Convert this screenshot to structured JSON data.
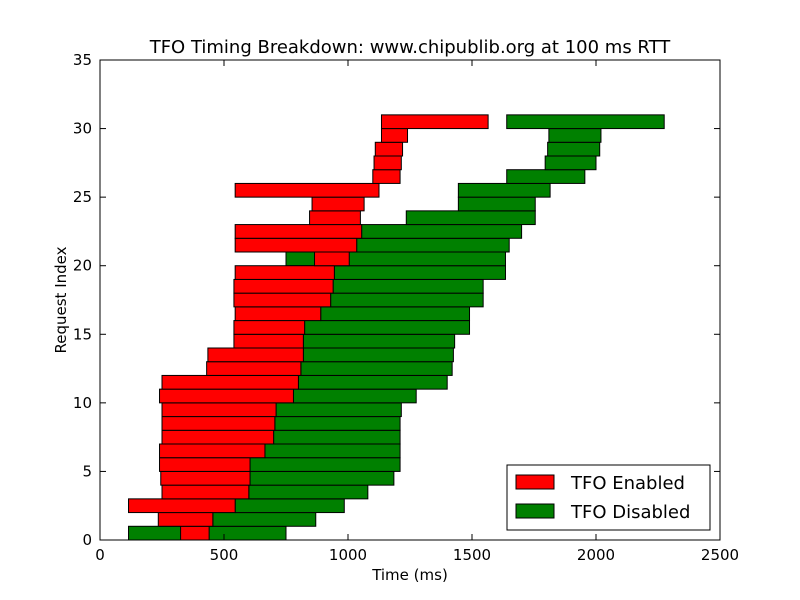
{
  "chart_data": {
    "type": "bar",
    "orientation": "horizontal",
    "title": "TFO Timing Breakdown: www.chipublib.org at 100 ms RTT",
    "xlabel": "Time (ms)",
    "ylabel": "Request Index",
    "xlim": [
      0,
      2500
    ],
    "ylim": [
      0,
      35
    ],
    "xticks": [
      0,
      500,
      1000,
      1500,
      2000,
      2500
    ],
    "yticks": [
      0,
      5,
      10,
      15,
      20,
      25,
      30,
      35
    ],
    "grid": false,
    "legend_position": "lower-right",
    "series": [
      {
        "name": "TFO Enabled",
        "color": "#ff0000",
        "bars": [
          {
            "index": 0,
            "start": 325,
            "end": 440
          },
          {
            "index": 1,
            "start": 235,
            "end": 455
          },
          {
            "index": 2,
            "start": 115,
            "end": 545
          },
          {
            "index": 3,
            "start": 250,
            "end": 600
          },
          {
            "index": 4,
            "start": 245,
            "end": 605
          },
          {
            "index": 5,
            "start": 240,
            "end": 605
          },
          {
            "index": 6,
            "start": 240,
            "end": 665
          },
          {
            "index": 7,
            "start": 250,
            "end": 700
          },
          {
            "index": 8,
            "start": 250,
            "end": 705
          },
          {
            "index": 9,
            "start": 250,
            "end": 710
          },
          {
            "index": 10,
            "start": 240,
            "end": 780
          },
          {
            "index": 11,
            "start": 250,
            "end": 800
          },
          {
            "index": 12,
            "start": 430,
            "end": 810
          },
          {
            "index": 13,
            "start": 435,
            "end": 820
          },
          {
            "index": 14,
            "start": 540,
            "end": 820
          },
          {
            "index": 15,
            "start": 540,
            "end": 825
          },
          {
            "index": 16,
            "start": 545,
            "end": 890
          },
          {
            "index": 17,
            "start": 540,
            "end": 930
          },
          {
            "index": 18,
            "start": 540,
            "end": 940
          },
          {
            "index": 19,
            "start": 545,
            "end": 945
          },
          {
            "index": 20,
            "start": 865,
            "end": 1005
          },
          {
            "index": 21,
            "start": 545,
            "end": 1035
          },
          {
            "index": 22,
            "start": 545,
            "end": 1055
          },
          {
            "index": 23,
            "start": 845,
            "end": 1050
          },
          {
            "index": 24,
            "start": 855,
            "end": 1065
          },
          {
            "index": 25,
            "start": 545,
            "end": 1125
          },
          {
            "index": 26,
            "start": 1100,
            "end": 1210
          },
          {
            "index": 27,
            "start": 1105,
            "end": 1215
          },
          {
            "index": 28,
            "start": 1110,
            "end": 1220
          },
          {
            "index": 29,
            "start": 1135,
            "end": 1240
          },
          {
            "index": 30,
            "start": 1135,
            "end": 1565
          }
        ]
      },
      {
        "name": "TFO Disabled",
        "color": "#008000",
        "bars": [
          {
            "index": 0,
            "start": 115,
            "end": 750
          },
          {
            "index": 1,
            "start": 455,
            "end": 870
          },
          {
            "index": 2,
            "start": 545,
            "end": 985
          },
          {
            "index": 3,
            "start": 600,
            "end": 1080
          },
          {
            "index": 4,
            "start": 605,
            "end": 1185
          },
          {
            "index": 5,
            "start": 605,
            "end": 1210
          },
          {
            "index": 6,
            "start": 665,
            "end": 1210
          },
          {
            "index": 7,
            "start": 700,
            "end": 1210
          },
          {
            "index": 8,
            "start": 705,
            "end": 1210
          },
          {
            "index": 9,
            "start": 710,
            "end": 1215
          },
          {
            "index": 10,
            "start": 780,
            "end": 1275
          },
          {
            "index": 11,
            "start": 800,
            "end": 1400
          },
          {
            "index": 12,
            "start": 810,
            "end": 1420
          },
          {
            "index": 13,
            "start": 820,
            "end": 1425
          },
          {
            "index": 14,
            "start": 820,
            "end": 1430
          },
          {
            "index": 15,
            "start": 825,
            "end": 1490
          },
          {
            "index": 16,
            "start": 890,
            "end": 1490
          },
          {
            "index": 17,
            "start": 930,
            "end": 1545
          },
          {
            "index": 18,
            "start": 940,
            "end": 1545
          },
          {
            "index": 19,
            "start": 945,
            "end": 1635
          },
          {
            "index": 20,
            "start": 750,
            "end": 1635
          },
          {
            "index": 21,
            "start": 1035,
            "end": 1650
          },
          {
            "index": 22,
            "start": 1055,
            "end": 1700
          },
          {
            "index": 23,
            "start": 1235,
            "end": 1755
          },
          {
            "index": 24,
            "start": 1445,
            "end": 1755
          },
          {
            "index": 25,
            "start": 1445,
            "end": 1815
          },
          {
            "index": 26,
            "start": 1640,
            "end": 1955
          },
          {
            "index": 27,
            "start": 1795,
            "end": 2000
          },
          {
            "index": 28,
            "start": 1805,
            "end": 2015
          },
          {
            "index": 29,
            "start": 1810,
            "end": 2020
          },
          {
            "index": 30,
            "start": 1640,
            "end": 2275
          }
        ]
      }
    ]
  }
}
